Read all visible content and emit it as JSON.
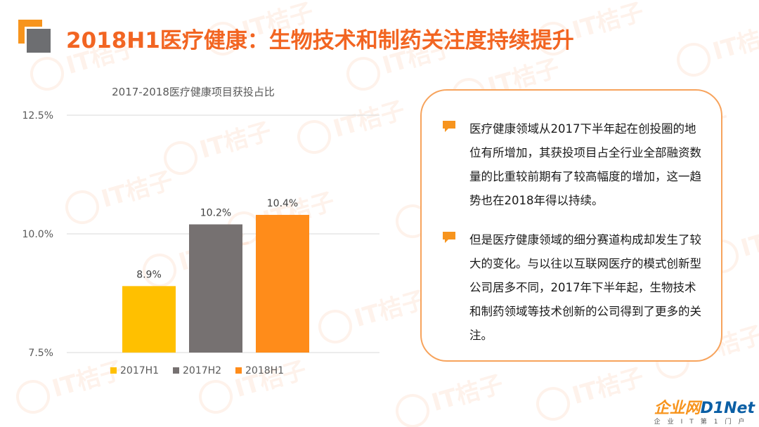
{
  "header": {
    "title": "2018H1医疗健康：生物技术和制药关注度持续提升"
  },
  "watermark": {
    "text": "IT桔子"
  },
  "chart_data": {
    "type": "bar",
    "title": "2017-2018医疗健康项目获投占比",
    "categories": [
      "2017H1",
      "2017H2",
      "2018H1"
    ],
    "values": [
      8.9,
      10.2,
      10.4
    ],
    "value_labels": [
      "8.9%",
      "10.2%",
      "10.4%"
    ],
    "colors": [
      "#FFC000",
      "#767171",
      "#FF8C1A"
    ],
    "ylim": [
      7.5,
      12.5
    ],
    "yticks": [
      7.5,
      10.0,
      12.5
    ],
    "ytick_labels": [
      "7.5%",
      "10.0%",
      "12.5%"
    ],
    "grid": true,
    "legend_position": "bottom",
    "xlabel": "",
    "ylabel": ""
  },
  "panel": {
    "accent_color": "#F7941D",
    "bullets": [
      "医疗健康领域从2017下半年起在创投圈的地位有所增加，其获投项目占全行业全部融资数量的比重较前期有了较高幅度的增加，这一趋势也在2018年得以持续。",
      "但是医疗健康领域的细分赛道构成却发生了较大的变化。与以往以互联网医疗的模式创新型公司居多不同，2017年下半年起，生物技术和制药领域等技术创新的公司得到了更多的关注。"
    ]
  },
  "brand": {
    "main_a": "企业网",
    "main_b": "D1Net",
    "sub": "企业IT第1门户"
  }
}
